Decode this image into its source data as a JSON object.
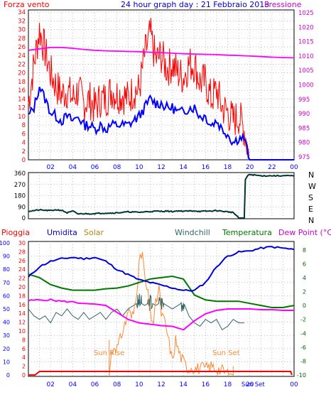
{
  "header": {
    "wind_title": "Forza vento",
    "graph_title": "24 hour graph day : 21 Febbraio 2013",
    "pressure_title": "Pressione"
  },
  "direction_labels": [
    "N",
    "W",
    "S",
    "E",
    "N"
  ],
  "time_ticks": [
    "02",
    "04",
    "06",
    "08",
    "10",
    "12",
    "14",
    "16",
    "18",
    "20",
    "22",
    "00"
  ],
  "bottom_labels": {
    "pioggia": "Pioggia",
    "umidita": "Umidita",
    "solar": "Solar",
    "windchill": "Windchill",
    "temperatura": "Temperatura",
    "dewpoint": "Dew Point (°C)",
    "sun_rise": "Sun Rise",
    "sun_set": "Sun Set",
    "sun_set_axis": "Sun Set"
  },
  "colors": {
    "background": "#ffffff",
    "wind_gust": "#ff0000",
    "wind_avg": "#0000ff",
    "pressure": "#ff00ff",
    "direction": "#003333",
    "rain": "#ff0000",
    "humidity": "#0000dd",
    "solar": "#ff8833",
    "windchill": "#336666",
    "temperature": "#007700",
    "dewpoint": "#ff00ff",
    "axis_left": "#ff0000",
    "axis_blue": "#0000ff",
    "axis_right": "#cc00cc",
    "axis_temp": "#006600"
  },
  "chart_data": [
    {
      "id": "wind_pressure",
      "type": "line",
      "x_unit": "hour",
      "xlim": [
        0,
        24
      ],
      "y_left_ticks": [
        0,
        2,
        4,
        6,
        8,
        10,
        12,
        14,
        16,
        18,
        20,
        22,
        24,
        26,
        28,
        30,
        32,
        34
      ],
      "y_right_ticks": [
        975,
        980,
        985,
        990,
        995,
        1000,
        1005,
        1010,
        1015,
        1020,
        1025
      ],
      "y_left_range": [
        0,
        34.5
      ],
      "y_right_range": [
        974,
        1026
      ],
      "grid": true,
      "series": [
        {
          "key": "gust",
          "axis": "left",
          "x": [
            0,
            0.5,
            1,
            1.5,
            2,
            2.5,
            3,
            3.5,
            4,
            4.5,
            5,
            5.5,
            6,
            6.5,
            7,
            7.5,
            8,
            8.5,
            9,
            9.5,
            10,
            10.5,
            11,
            11.5,
            12,
            12.5,
            13,
            13.5,
            14,
            14.5,
            15,
            15.5,
            16,
            16.5,
            17,
            17.5,
            18,
            18.5,
            19,
            19.5,
            20,
            20.5,
            21,
            21.5,
            22,
            22.5,
            23,
            23.5,
            24
          ],
          "values": [
            13,
            22,
            30,
            25,
            20,
            17,
            15,
            16,
            14,
            16,
            13,
            14,
            12,
            14,
            14,
            16,
            15,
            15,
            14,
            16,
            16,
            24,
            29,
            23,
            24,
            21,
            22,
            20,
            19,
            22,
            22,
            18,
            18,
            14,
            16,
            12,
            11,
            9,
            10,
            7,
            0,
            0,
            0,
            0,
            0,
            0,
            0,
            0,
            0
          ]
        },
        {
          "key": "avg",
          "axis": "left",
          "x": [
            0,
            0.5,
            1,
            1.5,
            2,
            2.5,
            3,
            3.5,
            4,
            4.5,
            5,
            5.5,
            6,
            6.5,
            7,
            7.5,
            8,
            8.5,
            9,
            9.5,
            10,
            10.5,
            11,
            11.5,
            12,
            12.5,
            13,
            13.5,
            14,
            14.5,
            15,
            15.5,
            16,
            16.5,
            17,
            17.5,
            18,
            18.5,
            19,
            19.5,
            20,
            20.5,
            21,
            21.5,
            22,
            22.5,
            23,
            23.5,
            24
          ],
          "values": [
            10,
            12,
            17,
            14,
            11,
            10,
            9,
            10,
            9,
            10,
            8,
            8,
            7,
            8,
            7,
            8,
            8,
            8,
            8,
            9,
            10,
            12,
            14,
            13,
            13,
            12,
            12,
            11,
            11,
            12,
            12,
            10,
            10,
            8,
            9,
            7,
            6,
            4,
            5,
            5,
            0,
            0,
            0,
            0,
            0,
            0,
            0,
            0,
            0
          ]
        },
        {
          "key": "pressure",
          "axis": "right",
          "x": [
            0,
            1,
            2,
            3,
            4,
            5,
            6,
            7,
            8,
            9,
            10,
            11,
            12,
            13,
            14,
            15,
            16,
            17,
            18,
            19,
            20,
            21,
            22,
            23,
            24
          ],
          "values": [
            1012,
            1012.5,
            1013,
            1013,
            1012.7,
            1012.3,
            1012,
            1011.8,
            1011.7,
            1011.6,
            1011.5,
            1011.3,
            1011.2,
            1011,
            1010.8,
            1010.7,
            1010.6,
            1010.5,
            1010.3,
            1010.2,
            1010,
            1009.8,
            1009.6,
            1009.5,
            1009.4
          ]
        }
      ]
    },
    {
      "id": "direction",
      "type": "line",
      "x_unit": "hour",
      "xlim": [
        0,
        24
      ],
      "y_ticks": [
        0,
        90,
        180,
        270,
        360
      ],
      "y_range": [
        0,
        360
      ],
      "grid": true,
      "series": [
        {
          "key": "direction",
          "x": [
            0,
            0.5,
            1,
            1.5,
            2,
            2.5,
            3,
            3.5,
            4,
            4.5,
            5,
            5.5,
            6,
            6.5,
            7,
            7.5,
            8,
            8.5,
            9,
            9.5,
            10,
            10.5,
            11,
            11.5,
            12,
            12.5,
            13,
            13.5,
            14,
            14.5,
            15,
            15.5,
            16,
            16.5,
            17,
            17.5,
            18,
            18.5,
            19,
            19.5,
            19.6,
            19.8,
            20,
            20.5,
            21,
            22,
            23,
            24
          ],
          "values": [
            55,
            60,
            65,
            62,
            60,
            66,
            62,
            42,
            55,
            33,
            35,
            34,
            36,
            38,
            40,
            40,
            42,
            45,
            50,
            48,
            46,
            50,
            52,
            55,
            54,
            56,
            52,
            58,
            55,
            56,
            58,
            53,
            55,
            56,
            60,
            55,
            50,
            45,
            0,
            0,
            310,
            340,
            350,
            345,
            340,
            340,
            340,
            340
          ]
        }
      ]
    },
    {
      "id": "atmosphere",
      "type": "line",
      "x_unit": "hour",
      "xlim": [
        0,
        24
      ],
      "y_humidity_ticks": [
        0,
        10,
        20,
        30,
        40,
        50,
        60,
        70,
        80,
        90,
        100
      ],
      "y_rain_ticks": [
        0,
        2,
        4,
        6,
        8,
        10,
        12,
        14,
        16,
        18,
        20,
        22,
        24,
        26,
        28,
        30
      ],
      "y_temp_ticks": [
        -10,
        -8,
        -6,
        -4,
        -2,
        0,
        2,
        4,
        6,
        8
      ],
      "humidity_range": [
        0,
        100
      ],
      "temp_range": [
        -10,
        9
      ],
      "grid": true,
      "series": [
        {
          "key": "humidity",
          "axis": "humidity",
          "x": [
            0,
            1,
            2,
            3,
            4,
            5,
            6,
            7,
            8,
            9,
            10,
            11,
            12,
            13,
            14,
            15,
            16,
            17,
            18,
            19,
            20,
            21,
            22,
            23,
            24
          ],
          "values": [
            74,
            82,
            86,
            88,
            89,
            88,
            89,
            86,
            80,
            76,
            72,
            70,
            68,
            66,
            64,
            64,
            70,
            82,
            90,
            93,
            94,
            96,
            97,
            96,
            95
          ]
        },
        {
          "key": "temperature",
          "axis": "temp",
          "x": [
            0,
            1,
            2,
            3,
            4,
            5,
            6,
            7,
            8,
            9,
            10,
            11,
            12,
            13,
            14,
            15,
            16,
            17,
            18,
            19,
            20,
            21,
            22,
            23,
            24
          ],
          "values": [
            4.5,
            4,
            3,
            2.5,
            2.2,
            2.2,
            2.2,
            2.4,
            2.5,
            2.8,
            3.3,
            3.8,
            4,
            4.2,
            3.8,
            1.5,
            0.8,
            0.6,
            0.6,
            0.6,
            0.3,
            0,
            -0.3,
            -0.3,
            0
          ]
        },
        {
          "key": "dewpoint",
          "axis": "temp",
          "x": [
            0,
            1,
            2,
            3,
            4,
            5,
            6,
            7,
            8,
            9,
            10,
            11,
            12,
            13,
            14,
            15,
            16,
            17,
            18,
            19,
            20,
            21,
            22,
            23,
            24
          ],
          "values": [
            0.7,
            0.8,
            0.8,
            0.6,
            0.5,
            0.3,
            0.2,
            0,
            -1,
            -2,
            -2.5,
            -2.7,
            -2.9,
            -3,
            -3.5,
            -2.2,
            -1.2,
            -0.7,
            -0.5,
            -0.5,
            -0.5,
            -0.6,
            -0.6,
            -0.7,
            -0.7
          ]
        },
        {
          "key": "windchill",
          "axis": "temp",
          "x": [
            0,
            0.5,
            1,
            1.5,
            2,
            2.5,
            3,
            3.5,
            4,
            4.5,
            5,
            5.5,
            6,
            6.5,
            7,
            7.5,
            8,
            8.5,
            9,
            9.5,
            10,
            10.5,
            11,
            11.5,
            12,
            12.5,
            13,
            13.5,
            14,
            14.5,
            15,
            15.5,
            16,
            16.5,
            17,
            17.5,
            18,
            18.5,
            19,
            19.5
          ],
          "values": [
            -0.5,
            -1.5,
            -2,
            -1.5,
            -2.5,
            -1,
            -1.5,
            -0.5,
            -1.5,
            -2,
            -1,
            -2,
            -1.5,
            -1,
            -2,
            -1,
            -0.5,
            -1.5,
            -0.5,
            0,
            0.5,
            0,
            0.5,
            0,
            0.5,
            0,
            -0.5,
            0,
            0.5,
            -1.5,
            -2.5,
            -3,
            -2,
            -2.5,
            -2,
            -3.5,
            -3,
            -2,
            -2.5,
            -2.5
          ]
        },
        {
          "key": "solar",
          "axis": "rain",
          "x": [
            7.3,
            7.5,
            7.8,
            8,
            8.3,
            8.5,
            8.8,
            9,
            9.3,
            9.5,
            9.8,
            10,
            10.3,
            10.5,
            10.8,
            11,
            11.3,
            11.5,
            11.8,
            12,
            12.3,
            12.5,
            12.8,
            13,
            13.3,
            13.5,
            13.8,
            14,
            14.3,
            14.5,
            14.8,
            15,
            15.5,
            16,
            16.5,
            17,
            17.5,
            18,
            18.5
          ],
          "values": [
            0,
            5,
            7,
            6,
            8,
            10,
            12,
            15,
            13,
            14,
            20,
            25,
            28,
            22,
            18,
            14,
            12,
            16,
            20,
            14,
            12,
            10,
            6,
            3,
            8,
            6,
            4,
            3,
            2,
            1.5,
            2,
            1.5,
            1.5,
            1.5,
            2,
            1.5,
            1,
            0.5,
            0
          ]
        },
        {
          "key": "rain",
          "axis": "rain",
          "x": [
            0,
            0.6,
            1,
            2,
            3,
            4,
            6,
            8,
            10,
            12,
            14,
            16,
            18,
            20,
            22,
            23.7,
            23.8
          ],
          "values": [
            0,
            0,
            0.8,
            0.8,
            0.8,
            0.8,
            0.8,
            0.8,
            0.8,
            0.8,
            0.8,
            0.8,
            0.8,
            0.8,
            0.8,
            0.8,
            0
          ]
        }
      ]
    }
  ]
}
